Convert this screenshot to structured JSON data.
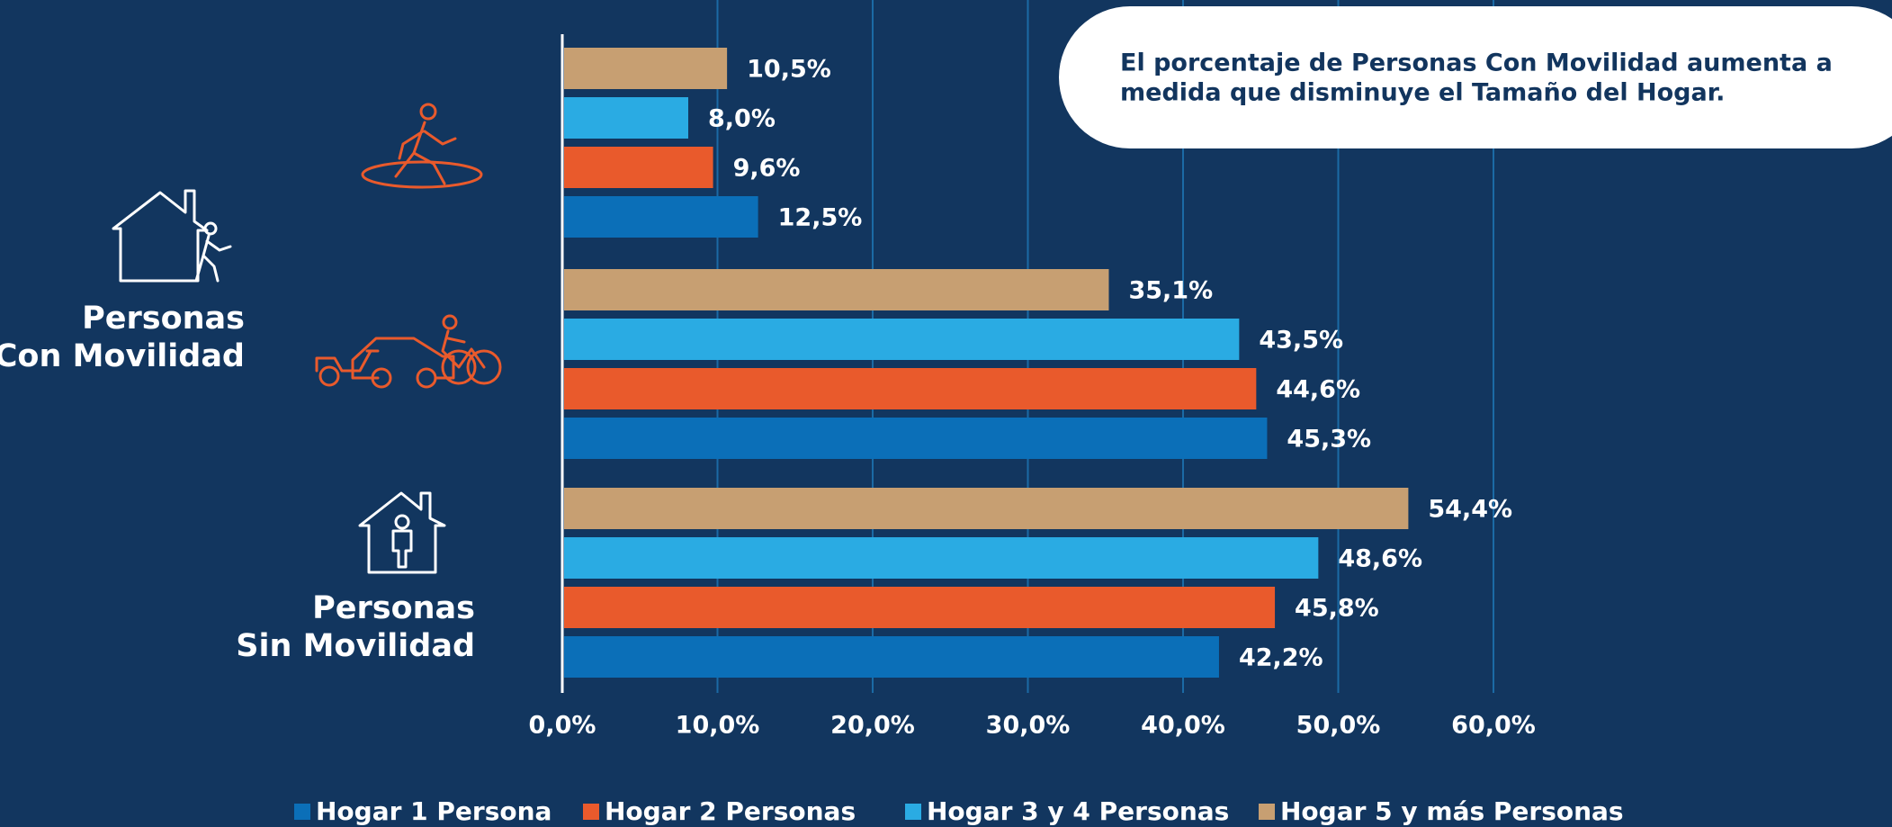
{
  "chart_data": {
    "type": "bar",
    "orientation": "horizontal",
    "categories": [
      null,
      null,
      null
    ],
    "group_labels": [
      [
        "Personas",
        "Con Movilidad"
      ],
      [
        "Personas",
        "Sin Movilidad"
      ]
    ],
    "annotation": [
      "El porcentaje de Personas Con Movilidad aumenta a",
      "medida que disminuye el Tamaño del Hogar."
    ],
    "series": [
      {
        "name": "Hogar 1 Persona",
        "color": "#0b6fb8",
        "values": [
          12.5,
          45.3,
          42.2
        ],
        "value_labels": [
          "12,5%",
          "45,3%",
          "42,2%"
        ]
      },
      {
        "name": "Hogar 2 Personas",
        "color": "#e95a2c",
        "values": [
          9.6,
          44.6,
          45.8
        ],
        "value_labels": [
          "9,6%",
          "44,6%",
          "45,8%"
        ]
      },
      {
        "name": "Hogar 3 y 4 Personas",
        "color": "#2aabe3",
        "values": [
          8.0,
          43.5,
          48.6
        ],
        "value_labels": [
          "8,0%",
          "43,5%",
          "48,6%"
        ]
      },
      {
        "name": "Hogar 5 y más Personas",
        "color": "#c79f72",
        "values": [
          10.5,
          35.1,
          54.4
        ],
        "value_labels": [
          "10,5%",
          "35,1%",
          "54,4%"
        ]
      }
    ],
    "xlim": [
      0,
      60
    ],
    "xticks": [
      {
        "value": 0,
        "label": "0,0%"
      },
      {
        "value": 10,
        "label": "10,0%"
      },
      {
        "value": 20,
        "label": "20,0%"
      },
      {
        "value": 30,
        "label": "30,0%"
      },
      {
        "value": 40,
        "label": "40,0%"
      },
      {
        "value": 50,
        "label": "50,0%"
      },
      {
        "value": 60,
        "label": "60,0%"
      }
    ],
    "grid": true
  }
}
